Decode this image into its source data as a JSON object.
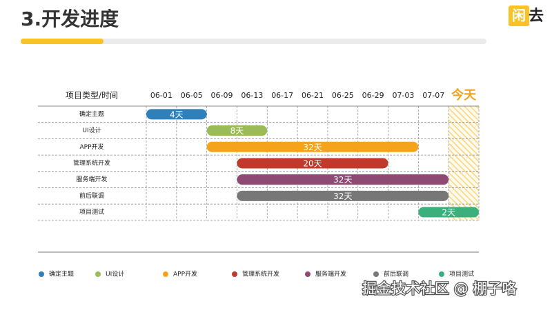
{
  "header": {
    "title": "3.开发进度",
    "logo": {
      "icon": "闲",
      "text": "去"
    }
  },
  "chart_data": {
    "type": "gantt",
    "row_header": "项目类型/时间",
    "columns": [
      "06-01",
      "06-05",
      "06-09",
      "06-13",
      "06-17",
      "06-21",
      "06-25",
      "06-29",
      "07-03",
      "07-07",
      "今天"
    ],
    "xlim": [
      0,
      44
    ],
    "tasks": [
      {
        "name": "确定主题",
        "start": 0,
        "end": 8,
        "label": "4天",
        "color": "#2e7fba"
      },
      {
        "name": "UI设计",
        "start": 8,
        "end": 16,
        "label": "8天",
        "color": "#9bbb59"
      },
      {
        "name": "APP开发",
        "start": 8,
        "end": 36,
        "label": "32天",
        "color": "#f5a31a"
      },
      {
        "name": "管理系统开发",
        "start": 12,
        "end": 32,
        "label": "20天",
        "color": "#c0392b"
      },
      {
        "name": "服务端开发",
        "start": 12,
        "end": 40,
        "label": "32天",
        "color": "#8e4a72"
      },
      {
        "name": "前后联调",
        "start": 12,
        "end": 40,
        "label": "32天",
        "color": "#777777"
      },
      {
        "name": "项目测试",
        "start": 36,
        "end": 44,
        "label": "2天",
        "color": "#3cb07c"
      }
    ]
  },
  "watermark": "掘金技术社区 @ 棚子咯"
}
